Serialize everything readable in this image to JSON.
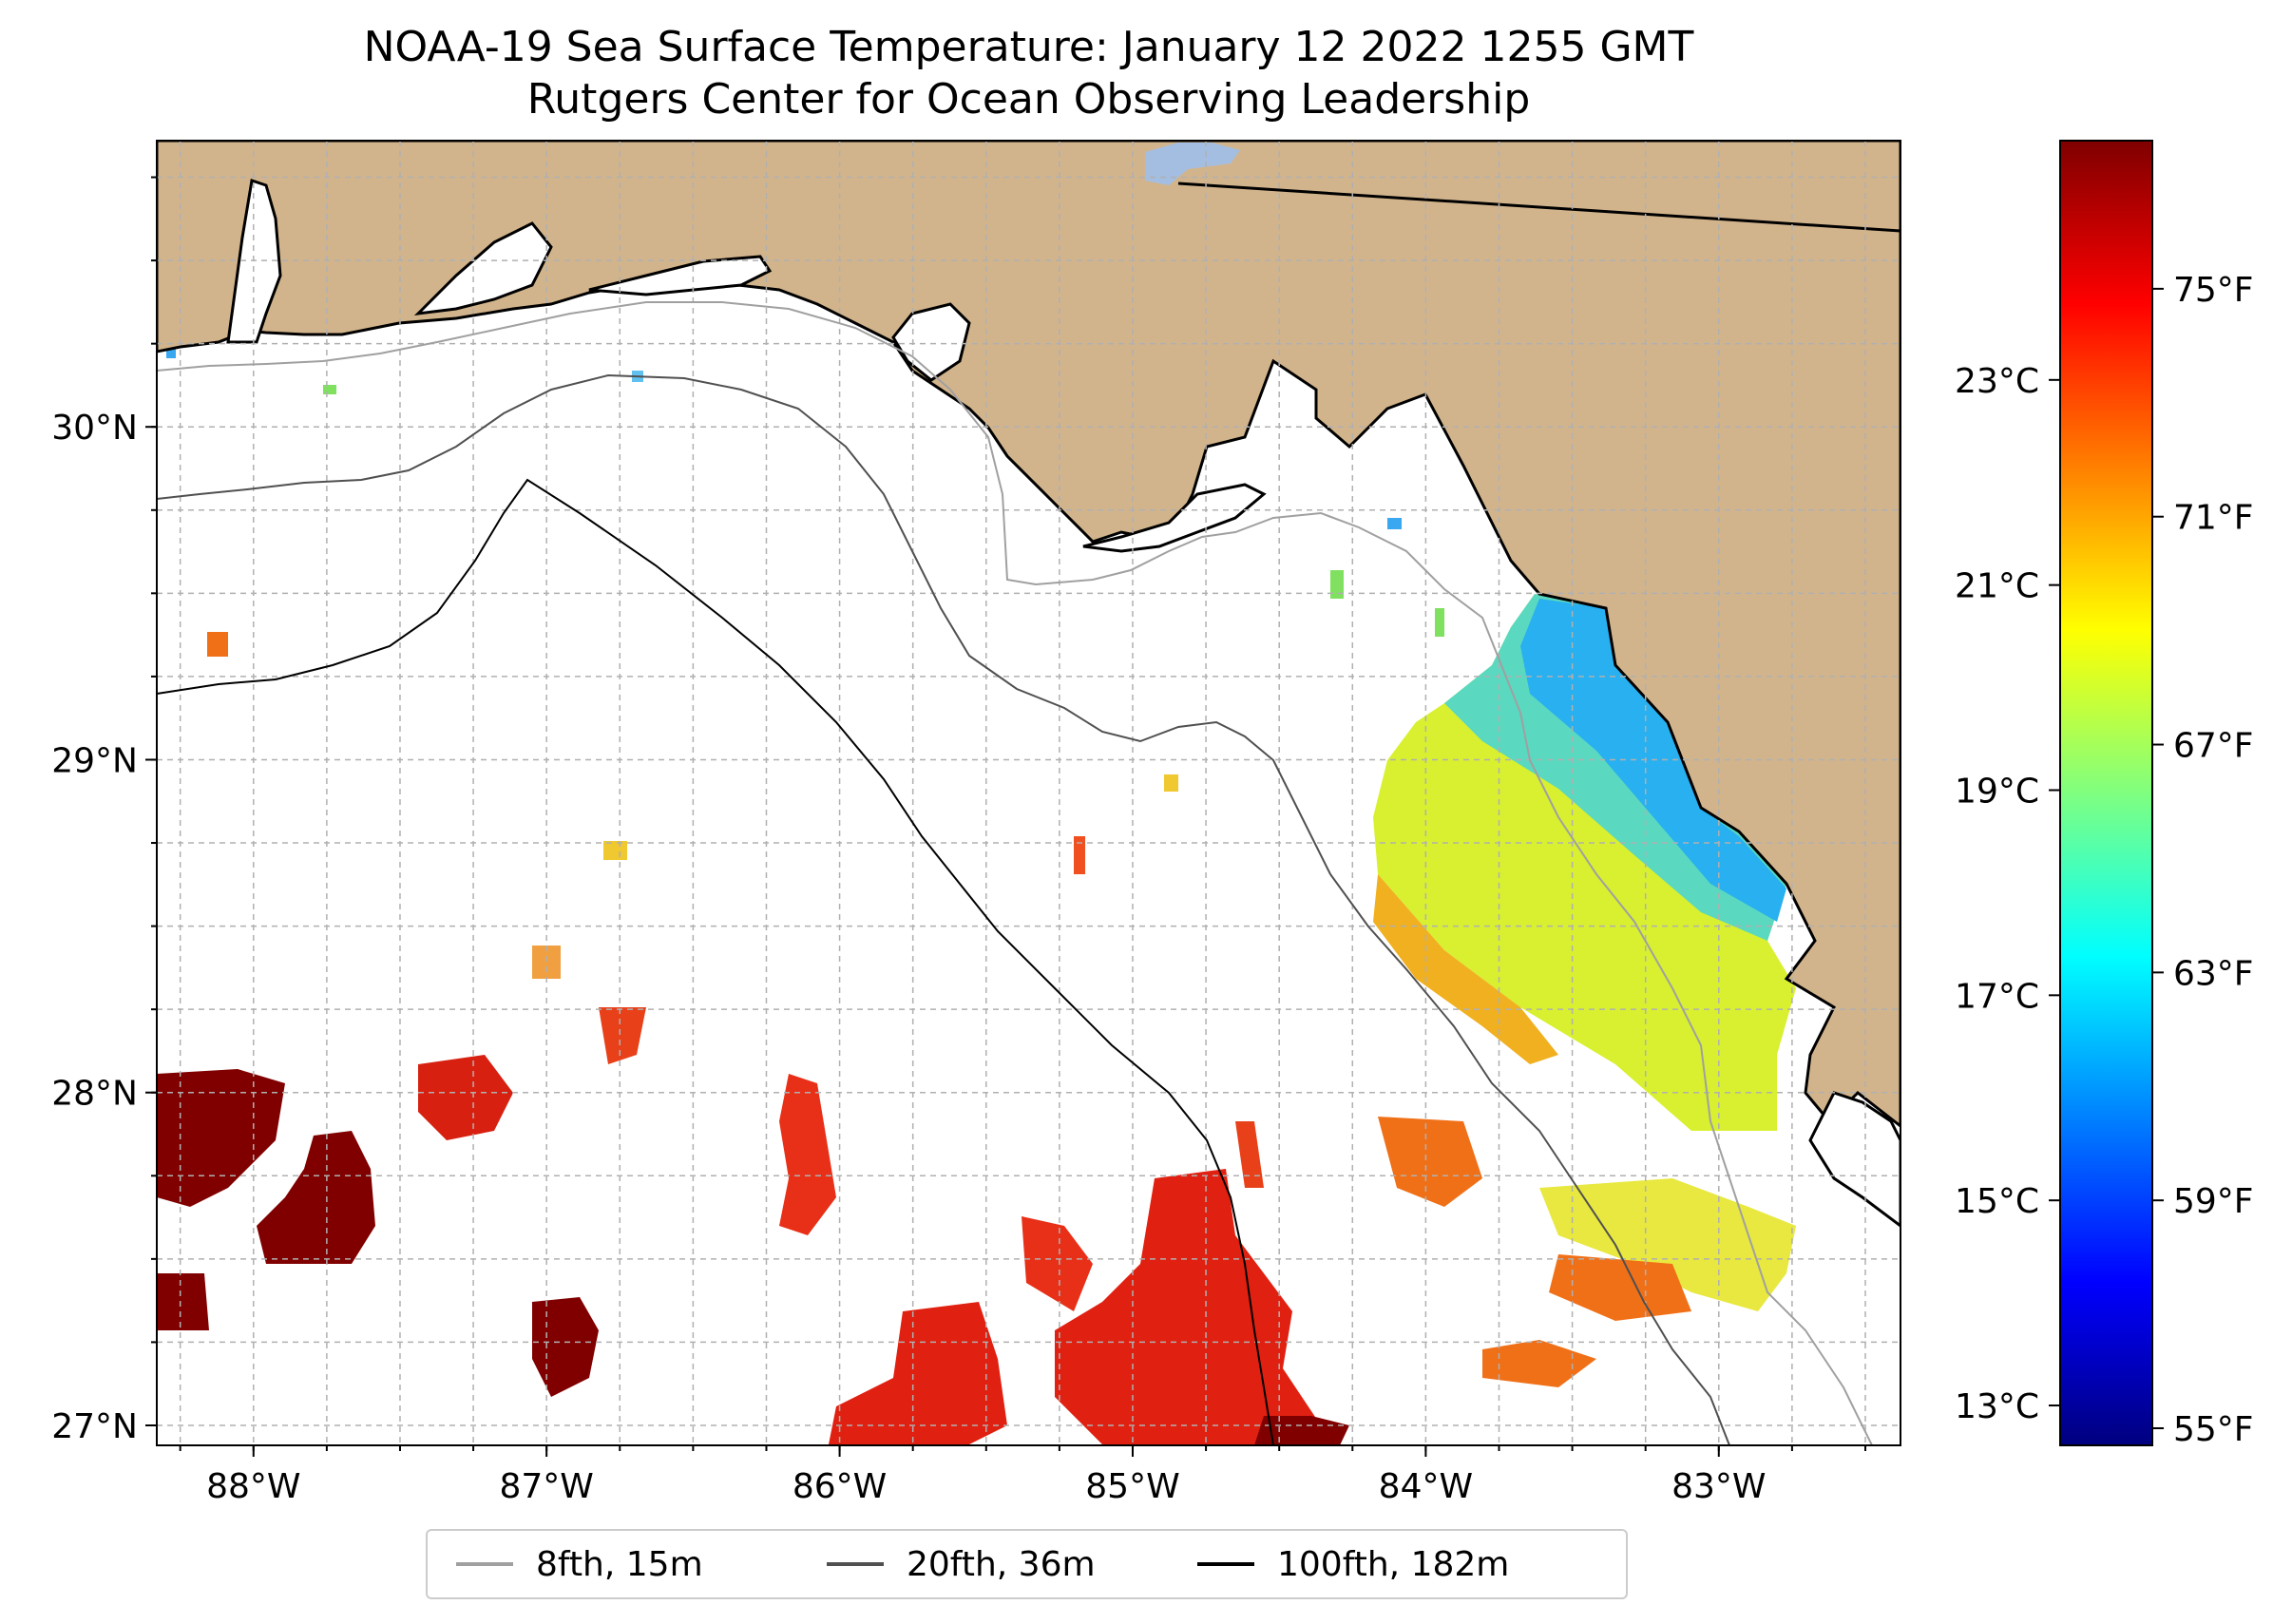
{
  "title": {
    "line1": "NOAA-19 Sea Surface Temperature: January 12 2022 1255 GMT",
    "line2": "Rutgers Center for Ocean Observing Leadership"
  },
  "map": {
    "extent": {
      "lon_min": -88.33,
      "lon_max": -82.38,
      "lat_min": 26.94,
      "lat_max": 30.86
    },
    "land_color": "#d2b48c",
    "ocean_color": "#ffffff",
    "lake_color": "#a4bee2",
    "x_ticks": [
      {
        "lon": -88,
        "label": "88°W"
      },
      {
        "lon": -87,
        "label": "87°W"
      },
      {
        "lon": -86,
        "label": "86°W"
      },
      {
        "lon": -85,
        "label": "85°W"
      },
      {
        "lon": -84,
        "label": "84°W"
      },
      {
        "lon": -83,
        "label": "83°W"
      }
    ],
    "y_ticks": [
      {
        "lat": 30,
        "label": "30°N"
      },
      {
        "lat": 29,
        "label": "29°N"
      },
      {
        "lat": 28,
        "label": "28°N"
      },
      {
        "lat": 27,
        "label": "27°N"
      }
    ],
    "minor_grid_step_deg": 0.25,
    "grid": true
  },
  "legend": {
    "placement": "bottom-center",
    "items": [
      {
        "label": "8fth, 15m",
        "color": "#a0a0a0"
      },
      {
        "label": "20fth, 36m",
        "color": "#505050"
      },
      {
        "label": "100fth, 182m",
        "color": "#000000"
      }
    ]
  },
  "colorbar": {
    "colormap": "jet",
    "min_f": 54.7,
    "max_f": 77.6,
    "fahrenheit_ticks": [
      {
        "value": 55,
        "label": "55°F"
      },
      {
        "value": 59,
        "label": "59°F"
      },
      {
        "value": 63,
        "label": "63°F"
      },
      {
        "value": 67,
        "label": "67°F"
      },
      {
        "value": 71,
        "label": "71°F"
      },
      {
        "value": 75,
        "label": "75°F"
      }
    ],
    "celsius_ticks": [
      {
        "value": 13,
        "label": "13°C"
      },
      {
        "value": 15,
        "label": "15°C"
      },
      {
        "value": 17,
        "label": "17°C"
      },
      {
        "value": 19,
        "label": "19°C"
      },
      {
        "value": 21,
        "label": "21°C"
      },
      {
        "value": 23,
        "label": "23°C"
      }
    ]
  }
}
